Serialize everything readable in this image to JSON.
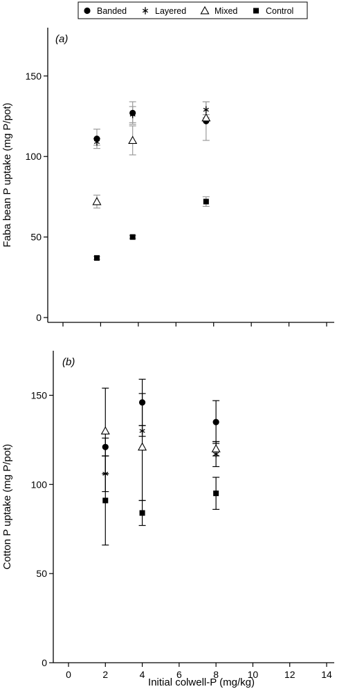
{
  "legend": {
    "items": [
      {
        "label": "Banded",
        "marker": "filled-circle"
      },
      {
        "label": "Layered",
        "marker": "asterisk"
      },
      {
        "label": "Mixed",
        "marker": "open-triangle"
      },
      {
        "label": "Control",
        "marker": "filled-square"
      }
    ],
    "position": "top-center"
  },
  "xlabel": "Initial colwell-P (mg/kg)",
  "chart_data": [
    {
      "type": "scatter",
      "panel_label": "(a)",
      "ylabel": "Faba bean P uptake (mg P/pot)",
      "xlabel": "",
      "xlim": [
        0,
        14
      ],
      "ylim": [
        -3,
        180
      ],
      "yticks": [
        0,
        50,
        100,
        150
      ],
      "x_tick_labels_shown": false,
      "error_bar_color": "#9a9a9a",
      "grid": false,
      "series": [
        {
          "name": "Banded",
          "marker": "filled-circle",
          "points": [
            {
              "x": 1.8,
              "y": 111,
              "err": 6
            },
            {
              "x": 3.7,
              "y": 127,
              "err": 7
            },
            {
              "x": 7.6,
              "y": 122,
              "err": 12
            }
          ]
        },
        {
          "name": "Layered",
          "marker": "asterisk",
          "points": [
            {
              "x": 1.8,
              "y": 109,
              "err": 2
            },
            {
              "x": 3.7,
              "y": 126,
              "err": 5
            },
            {
              "x": 7.6,
              "y": 129,
              "err": 5
            }
          ]
        },
        {
          "name": "Mixed",
          "marker": "open-triangle",
          "points": [
            {
              "x": 1.8,
              "y": 72,
              "err": 4
            },
            {
              "x": 3.7,
              "y": 110,
              "err": 9
            },
            {
              "x": 7.6,
              "y": 124,
              "err": 2
            }
          ]
        },
        {
          "name": "Control",
          "marker": "filled-square",
          "points": [
            {
              "x": 1.8,
              "y": 37,
              "err": 1
            },
            {
              "x": 3.7,
              "y": 50,
              "err": 1
            },
            {
              "x": 7.6,
              "y": 72,
              "err": 3
            }
          ]
        }
      ]
    },
    {
      "type": "scatter",
      "panel_label": "(b)",
      "ylabel": "Cotton P uptake (mg P/pot)",
      "xlabel": "Initial colwell-P (mg/kg)",
      "xlim": [
        0,
        14
      ],
      "ylim": [
        0,
        175
      ],
      "xticks": [
        0,
        2,
        4,
        6,
        8,
        10,
        12,
        14
      ],
      "yticks": [
        0,
        50,
        100,
        150
      ],
      "error_bar_color": "#000000",
      "grid": false,
      "series": [
        {
          "name": "Banded",
          "marker": "filled-circle",
          "points": [
            {
              "x": 2,
              "y": 121,
              "err": 5
            },
            {
              "x": 4,
              "y": 146,
              "err": 13
            },
            {
              "x": 8,
              "y": 135,
              "err": 12
            }
          ]
        },
        {
          "name": "Layered",
          "marker": "asterisk",
          "points": [
            {
              "x": 2,
              "y": 106,
              "err": 10
            },
            {
              "x": 4,
              "y": 130,
              "err": 3
            },
            {
              "x": 8,
              "y": 117,
              "err": 7
            }
          ]
        },
        {
          "name": "Mixed",
          "marker": "open-triangle",
          "points": [
            {
              "x": 2,
              "y": 130,
              "err": 24
            },
            {
              "x": 4,
              "y": 121,
              "err": 30
            },
            {
              "x": 8,
              "y": 120,
              "err": 4
            }
          ]
        },
        {
          "name": "Control",
          "marker": "filled-square",
          "points": [
            {
              "x": 2,
              "y": 91,
              "err": 25
            },
            {
              "x": 4,
              "y": 84,
              "err": 7
            },
            {
              "x": 8,
              "y": 95,
              "err": 9
            }
          ]
        }
      ]
    }
  ]
}
